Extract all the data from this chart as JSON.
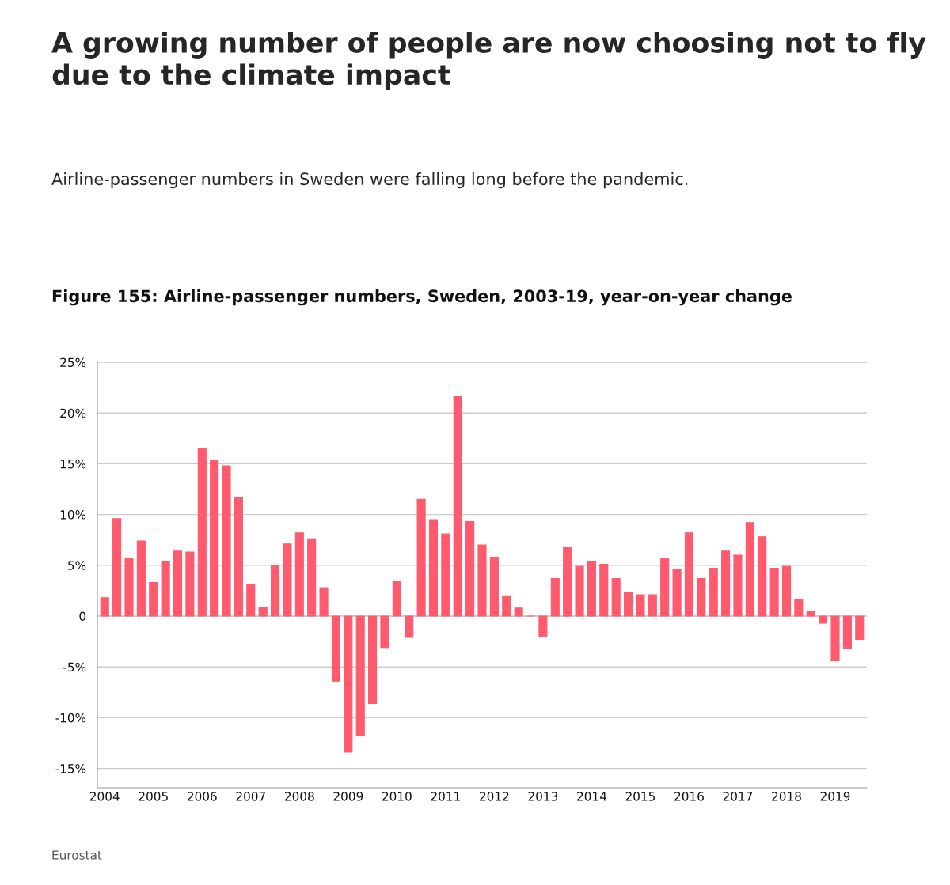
{
  "chart_data": {
    "type": "bar",
    "title": "A growing number of people are now choosing not to fly due to the climate impact",
    "subtitle": "Airline-passenger numbers in Sweden were falling long before the pandemic.",
    "annotations": [
      "Figure 155: Airline-passenger numbers, Sweden, 2003-19, year-on-year change",
      "Eurostat"
    ],
    "categories": [
      "2004",
      null,
      null,
      null,
      "2005",
      null,
      null,
      null,
      "2006",
      null,
      null,
      null,
      "2007",
      null,
      null,
      null,
      "2008",
      null,
      null,
      null,
      "2009",
      null,
      null,
      null,
      "2010",
      null,
      null,
      null,
      "2011",
      null,
      null,
      null,
      "2012",
      null,
      null,
      null,
      "2013",
      null,
      null,
      null,
      "2014",
      null,
      null,
      null,
      "2015",
      null,
      null,
      null,
      "2016",
      null,
      null,
      null,
      "2017",
      null,
      null,
      null,
      "2018",
      null,
      null,
      null,
      "2019",
      null,
      null
    ],
    "values": [
      1.8,
      9.6,
      5.7,
      7.4,
      3.3,
      5.4,
      6.4,
      6.3,
      16.5,
      15.3,
      14.8,
      11.7,
      3.1,
      0.9,
      5.0,
      7.1,
      8.2,
      7.6,
      2.8,
      -6.4,
      -13.4,
      -11.8,
      -8.6,
      -3.1,
      3.4,
      -2.1,
      11.5,
      9.5,
      8.1,
      21.6,
      9.3,
      7.0,
      5.8,
      2.0,
      0.8,
      0.0,
      -2.0,
      3.7,
      6.8,
      4.9,
      5.4,
      5.1,
      3.7,
      2.3,
      2.1,
      2.1,
      5.7,
      4.6,
      8.2,
      3.7,
      4.7,
      6.4,
      6.0,
      9.2,
      7.8,
      4.7,
      4.9,
      1.6,
      0.5,
      -0.7,
      -4.4,
      -3.2,
      -2.3
    ],
    "color": "#ff5a6e",
    "ylim": [
      -16.9,
      25
    ],
    "yticks": [
      {
        "value": -15,
        "label": "-15%"
      },
      {
        "value": -10,
        "label": "-10%"
      },
      {
        "value": -5,
        "label": "-5%"
      },
      0,
      {
        "value": 5,
        "label": "5%"
      },
      {
        "value": 10,
        "label": "10%"
      },
      {
        "value": 15,
        "label": "15%"
      },
      {
        "value": 20,
        "label": "20%"
      },
      {
        "value": 25,
        "label": "25%"
      }
    ],
    "grid": "y"
  }
}
